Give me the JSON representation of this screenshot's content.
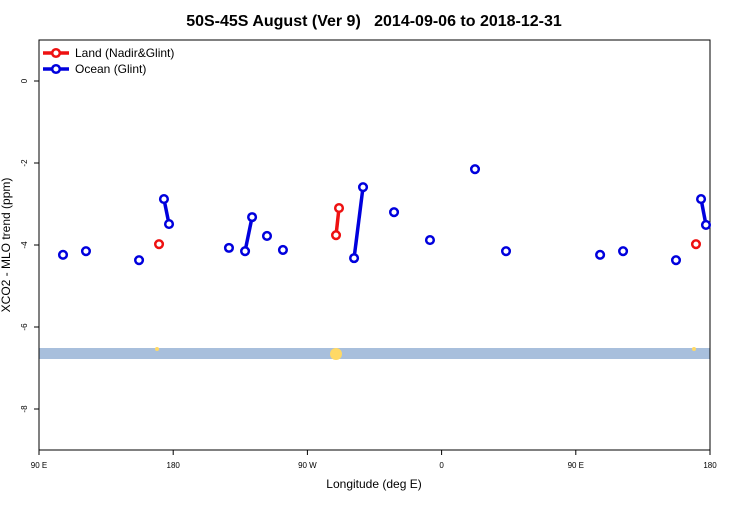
{
  "chart_data": {
    "type": "line",
    "title": "50S-45S August (Ver 9)   2014-09-06 to 2018-12-31",
    "x_label": "Longitude (deg E)",
    "y_label": "XCO2 - MLO trend (ppm)",
    "xlim": [
      90,
      540
    ],
    "xticks": [
      {
        "value": 90,
        "label": "90 E"
      },
      {
        "value": 180,
        "label": "180"
      },
      {
        "value": 270,
        "label": "90 W"
      },
      {
        "value": 360,
        "label": "0"
      },
      {
        "value": 450,
        "label": "90 E"
      },
      {
        "value": 540,
        "label": "180"
      }
    ],
    "ylim": [
      -9,
      1
    ],
    "yticks": [
      0,
      -2,
      -4,
      -6,
      -8
    ],
    "legend": "top-left",
    "series": [
      {
        "name": "Land (Nadir&Glint)",
        "color": "#ee1111",
        "x": [
          170.5,
          null,
          289.2,
          291.2,
          null,
          530.6
        ],
        "values": [
          -3.98,
          null,
          -3.76,
          -3.1,
          null,
          -3.98
        ]
      },
      {
        "name": "Ocean (Glint)",
        "color": "#0000dd",
        "x": [
          106.1,
          null,
          121.5,
          null,
          157.1,
          null,
          173.8,
          177.2,
          null,
          217.4,
          null,
          228.2,
          232.9,
          null,
          242.9,
          null,
          253.6,
          null,
          301.3,
          307.3,
          null,
          328.1,
          null,
          352.2,
          null,
          382.4,
          null,
          403.2,
          null,
          466.3,
          null,
          481.7,
          null,
          517.2,
          null,
          534.0,
          537.3
        ],
        "values": [
          -4.24,
          null,
          -4.15,
          null,
          -4.37,
          null,
          -2.88,
          -3.49,
          null,
          -4.07,
          null,
          -4.15,
          -3.32,
          null,
          -3.78,
          null,
          -4.12,
          null,
          -4.32,
          -2.59,
          null,
          -3.2,
          null,
          -3.88,
          null,
          -2.15,
          null,
          -4.15,
          null,
          -4.24,
          null,
          -4.15,
          null,
          -4.37,
          null,
          -2.88,
          -3.51
        ]
      }
    ]
  }
}
